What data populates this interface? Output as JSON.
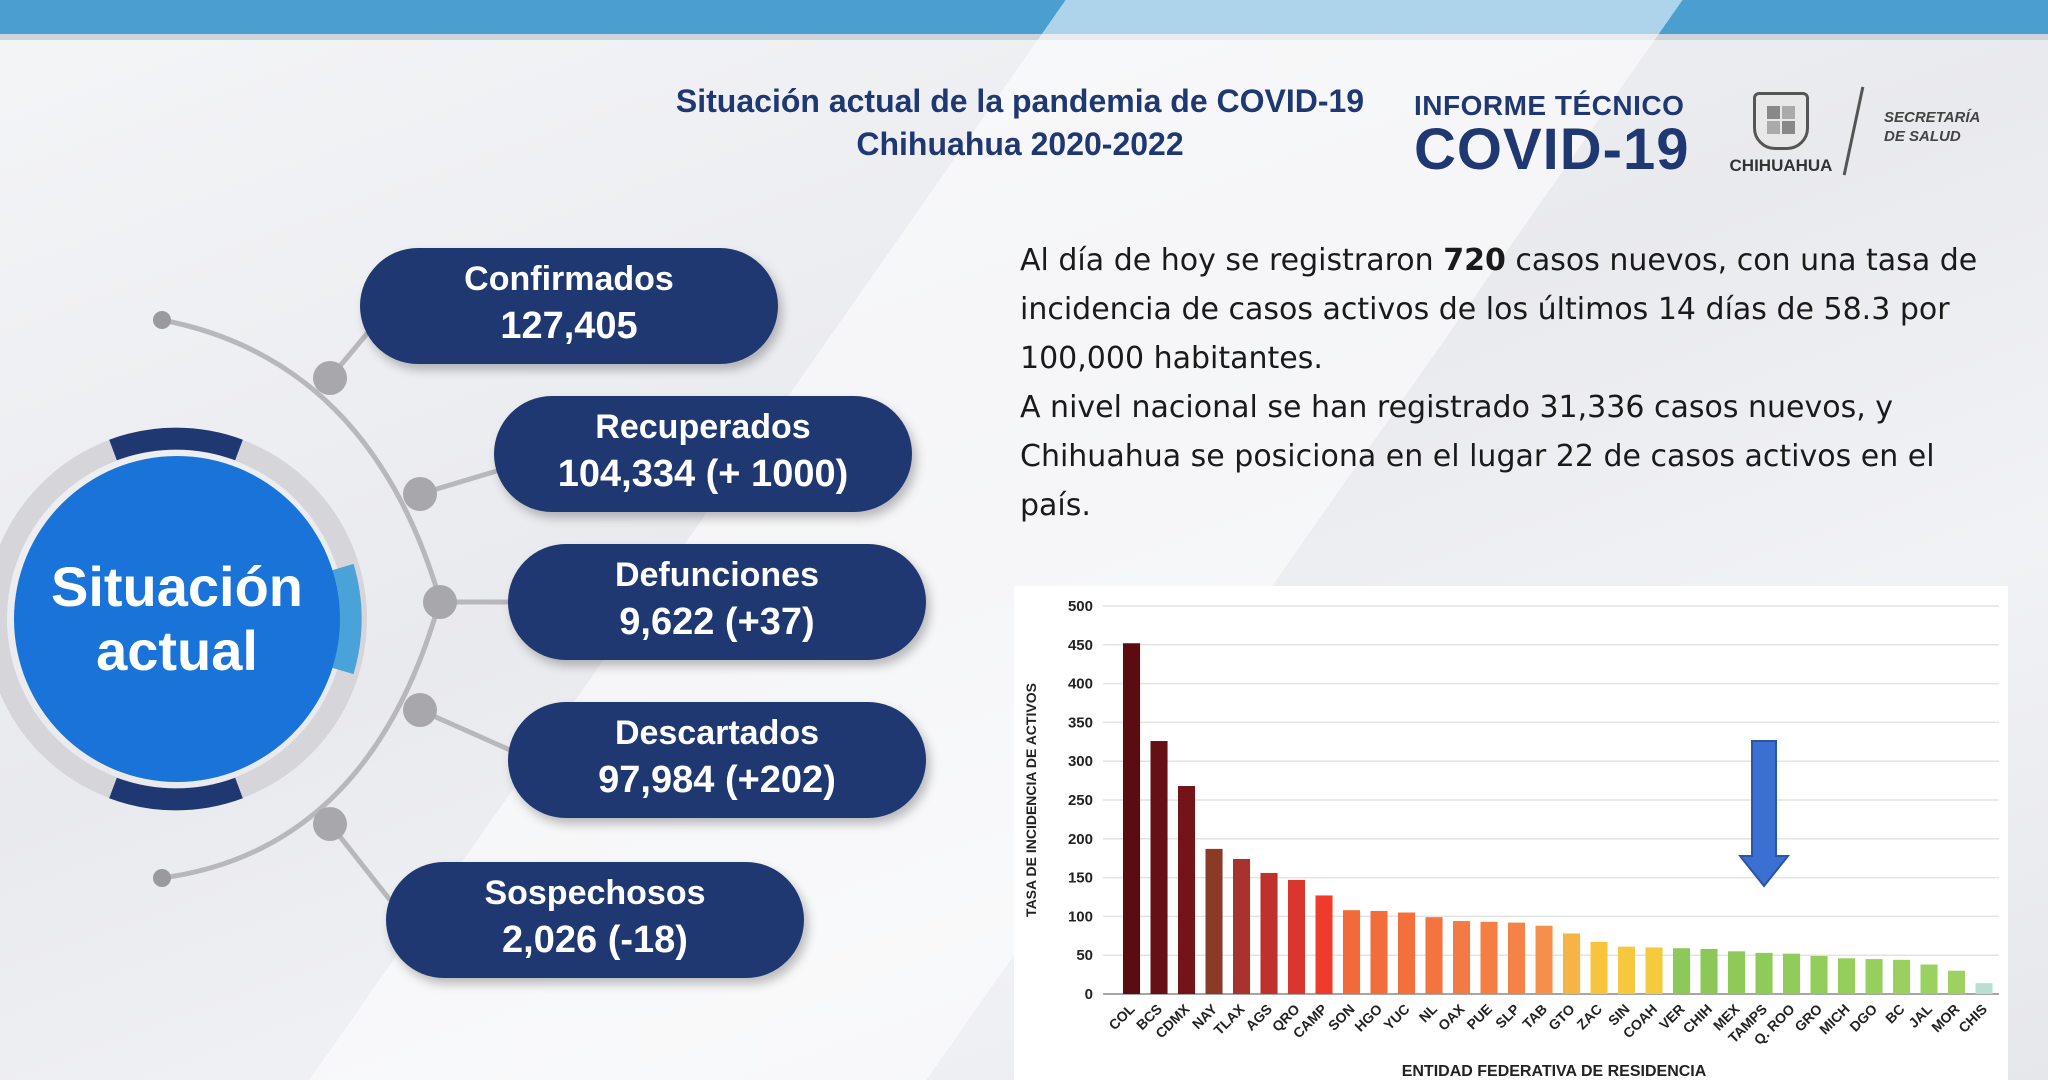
{
  "header": {
    "title_line1": "Situación actual de la pandemia de COVID-19",
    "title_line2": "Chihuahua 2020-2022",
    "informe_line1": "INFORME TÉCNICO",
    "informe_line2": "COVID-19",
    "state_name": "CHIHUAHUA",
    "secretaria_line1": "SECRETARÍA",
    "secretaria_line2": "DE SALUD"
  },
  "hub": {
    "line1": "Situación",
    "line2": "actual"
  },
  "stats": [
    {
      "label": "Confirmados",
      "value": "127,405"
    },
    {
      "label": "Recuperados",
      "value": "104,334 (+ 1000)"
    },
    {
      "label": "Defunciones",
      "value": "9,622 (+37)"
    },
    {
      "label": "Descartados",
      "value": "97,984 (+202)"
    },
    {
      "label": "Sospechosos",
      "value": "2,026 (-18)"
    }
  ],
  "summary": {
    "p1_before": "Al día de hoy se registraron ",
    "p1_bold": "720",
    "p1_after": " casos nuevos, con una tasa de incidencia de casos activos de los últimos 14 días de 58.3 por 100,000 habitantes.",
    "p2": "A nivel nacional se han registrado 31,336 casos nuevos, y Chihuahua se posiciona en el lugar 22 de casos activos en el país."
  },
  "colors": {
    "navy": "#1f3872",
    "hub_blue": "#1a73d9",
    "arrow_blue": "#3b6fd1"
  },
  "chart_data": {
    "type": "bar",
    "title": "",
    "xlabel": "ENTIDAD FEDERATIVA DE RESIDENCIA",
    "ylabel": "TASA DE INCIDENCIA DE ACTIVOS",
    "ylim": [
      0,
      500
    ],
    "yticks": [
      0,
      50,
      100,
      150,
      200,
      250,
      300,
      350,
      400,
      450,
      500
    ],
    "grid": true,
    "highlight": "CHIH",
    "categories": [
      "COL",
      "BCS",
      "CDMX",
      "NAY",
      "TLAX",
      "AGS",
      "QRO",
      "CAMP",
      "SON",
      "HGO",
      "YUC",
      "NL",
      "OAX",
      "PUE",
      "SLP",
      "TAB",
      "GTO",
      "ZAC",
      "SIN",
      "COAH",
      "VER",
      "CHIH",
      "MEX",
      "TAMPS",
      "Q. ROO",
      "GRO",
      "MICH",
      "DGO",
      "BC",
      "JAL",
      "MOR",
      "CHIS"
    ],
    "values": [
      452,
      326,
      268,
      187,
      174,
      156,
      147,
      127,
      108,
      107,
      105,
      99,
      94,
      93,
      92,
      88,
      78,
      67,
      61,
      60,
      59,
      58,
      55,
      53,
      52,
      49,
      46,
      45,
      44,
      38,
      30,
      14
    ],
    "colors": [
      "#5a0c10",
      "#661014",
      "#721418",
      "#8b3a26",
      "#a8332e",
      "#c0312e",
      "#d9362e",
      "#ee3b2b",
      "#f26a3a",
      "#f36d3b",
      "#f3703c",
      "#f47440",
      "#f47a43",
      "#f57e45",
      "#f58247",
      "#f4904b",
      "#f6b445",
      "#f8c43e",
      "#f7c73f",
      "#f6ca3f",
      "#8dc85a",
      "#8bc857",
      "#8dca58",
      "#8fcb59",
      "#91cc5a",
      "#93cd5b",
      "#95ce5c",
      "#97cf5e",
      "#99d05f",
      "#9bd160",
      "#9dd262",
      "#b8e0d0"
    ]
  }
}
